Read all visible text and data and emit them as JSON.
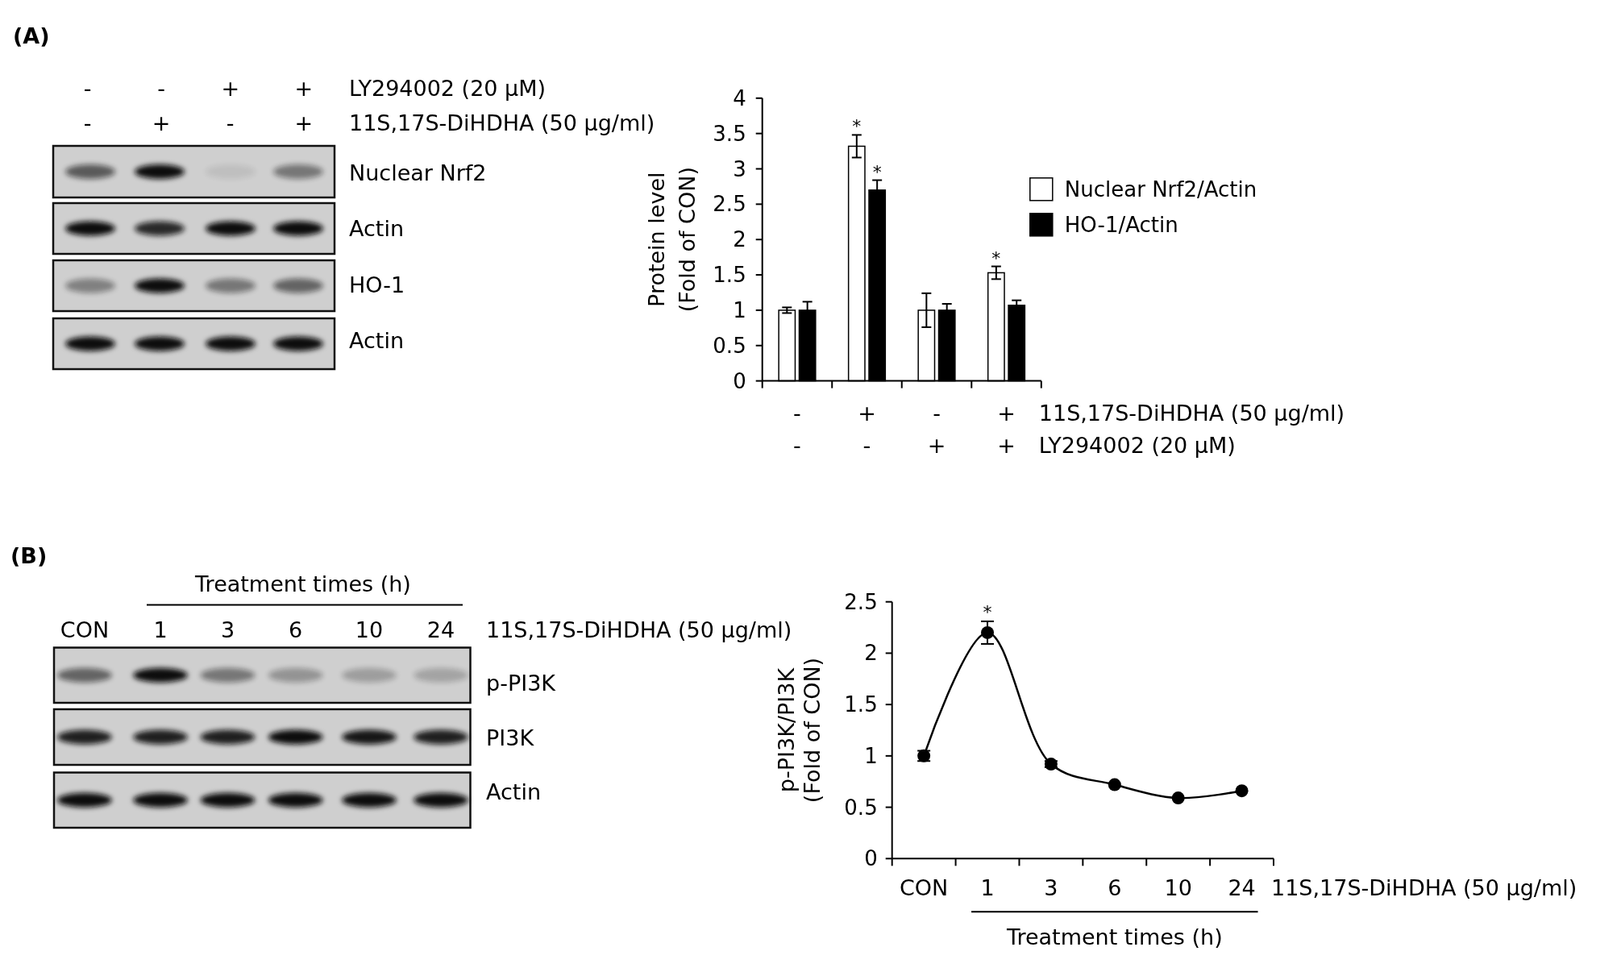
{
  "chart_data": [
    {
      "type": "other",
      "title": "(A)",
      "annotations": [
        "-",
        "-",
        "+",
        "+",
        "LY294002 (20 μM)",
        "-",
        "+",
        "-",
        "+",
        "11S,17S-DiHDHA (50 μg/ml)",
        "Nuclear Nrf2",
        "Actin",
        "HO-1",
        "Actin"
      ]
    },
    {
      "type": "bar",
      "ylabel": "Protein level\n(Fold of CON)",
      "xlabel": "11S,17S-DiHDHA (50 μg/ml)\nLY294002 (20 μM)",
      "categories": [
        "-\n-",
        "+\n-",
        "-\n+",
        "+\n+"
      ],
      "series": [
        {
          "name": "Nuclear Nrf2/Actin",
          "color": "#ffffff",
          "values": [
            1.0,
            3.32,
            1.0,
            1.53
          ],
          "errors": [
            0.04,
            0.16,
            0.24,
            0.09
          ],
          "value_labels": [
            null,
            "*",
            null,
            "*"
          ]
        },
        {
          "name": "HO-1/Actin",
          "color": "#000000",
          "values": [
            1.0,
            2.7,
            1.0,
            1.07
          ],
          "errors": [
            0.12,
            0.14,
            0.09,
            0.07
          ],
          "value_labels": [
            null,
            "*",
            null,
            null
          ]
        }
      ],
      "ylim": [
        0,
        4
      ],
      "yticks": [
        0,
        0.5,
        1,
        1.5,
        2,
        2.5,
        3,
        3.5,
        4
      ],
      "legend": "top right"
    },
    {
      "type": "other",
      "title": "(B)",
      "annotations": [
        "Treatment times (h)",
        "CON",
        "1",
        "3",
        "6",
        "10",
        "24",
        "11S,17S-DiHDHA (50 μg/ml)",
        "p-PI3K",
        "PI3K",
        "Actin"
      ]
    },
    {
      "type": "line",
      "ylabel": "p-PI3K/PI3K\n(Fold of CON)",
      "xlabel": "11S,17S-DiHDHA (50 μg/ml)",
      "categories": [
        "CON",
        "1",
        "3",
        "6",
        "10",
        "24"
      ],
      "series": [
        {
          "color": "#000000",
          "values": [
            1.0,
            2.2,
            0.92,
            0.72,
            0.59,
            0.66
          ],
          "errors": [
            0.05,
            0.11,
            0.03,
            null,
            null,
            null
          ],
          "value_labels": [
            null,
            "*",
            null,
            null,
            null,
            null
          ]
        }
      ],
      "ylim": [
        0,
        2.5
      ],
      "yticks": [
        0,
        0.5,
        1,
        1.5,
        2,
        2.5
      ],
      "marker": "circle",
      "line_style": "solid",
      "annotations": [
        "Treatment times (h)"
      ]
    }
  ]
}
